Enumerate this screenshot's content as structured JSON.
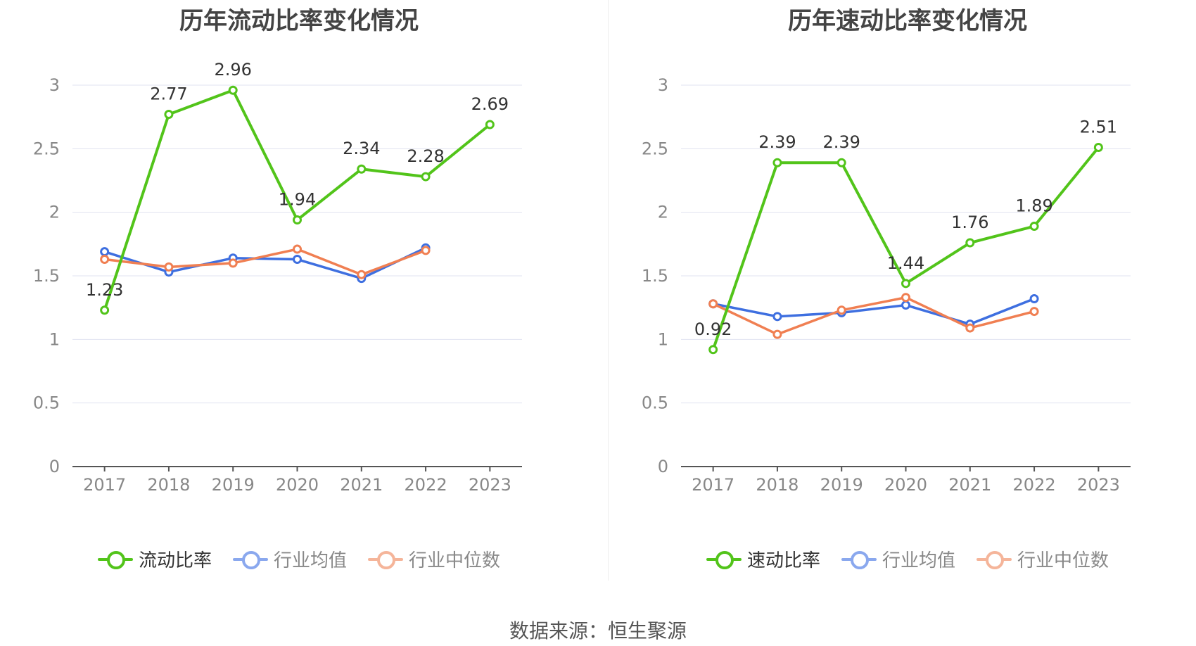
{
  "colors": {
    "main": "#52c41a",
    "avg": "#3e6fe0",
    "median": "#f07f52"
  },
  "source": "数据来源：恒生聚源",
  "chart_data": [
    {
      "type": "line",
      "title": "历年流动比率变化情况",
      "categories": [
        "2017",
        "2018",
        "2019",
        "2020",
        "2021",
        "2022",
        "2023"
      ],
      "ylim": [
        0,
        3
      ],
      "yticks": [
        "0",
        "0.5",
        "1",
        "1.5",
        "2",
        "2.5",
        "3"
      ],
      "grid": true,
      "legend_position": "bottom",
      "series": [
        {
          "name": "流动比率",
          "key": "main",
          "values": [
            1.23,
            2.77,
            2.96,
            1.94,
            2.34,
            2.28,
            2.69
          ],
          "labels": [
            "1.23",
            "2.77",
            "2.96",
            "1.94",
            "2.34",
            "2.28",
            "2.69"
          ]
        },
        {
          "name": "行业均值",
          "key": "avg",
          "values": [
            1.69,
            1.53,
            1.64,
            1.63,
            1.48,
            1.72,
            null
          ]
        },
        {
          "name": "行业中位数",
          "key": "median",
          "values": [
            1.63,
            1.57,
            1.6,
            1.71,
            1.51,
            1.7,
            null
          ]
        }
      ]
    },
    {
      "type": "line",
      "title": "历年速动比率变化情况",
      "categories": [
        "2017",
        "2018",
        "2019",
        "2020",
        "2021",
        "2022",
        "2023"
      ],
      "ylim": [
        0,
        3
      ],
      "yticks": [
        "0",
        "0.5",
        "1",
        "1.5",
        "2",
        "2.5",
        "3"
      ],
      "grid": true,
      "legend_position": "bottom",
      "series": [
        {
          "name": "速动比率",
          "key": "main",
          "values": [
            0.92,
            2.39,
            2.39,
            1.44,
            1.76,
            1.89,
            2.51
          ],
          "labels": [
            "0.92",
            "2.39",
            "2.39",
            "1.44",
            "1.76",
            "1.89",
            "2.51"
          ]
        },
        {
          "name": "行业均值",
          "key": "avg",
          "values": [
            1.28,
            1.18,
            1.21,
            1.27,
            1.12,
            1.32,
            null
          ]
        },
        {
          "name": "行业中位数",
          "key": "median",
          "values": [
            1.28,
            1.04,
            1.23,
            1.33,
            1.09,
            1.22,
            null
          ]
        }
      ]
    }
  ]
}
